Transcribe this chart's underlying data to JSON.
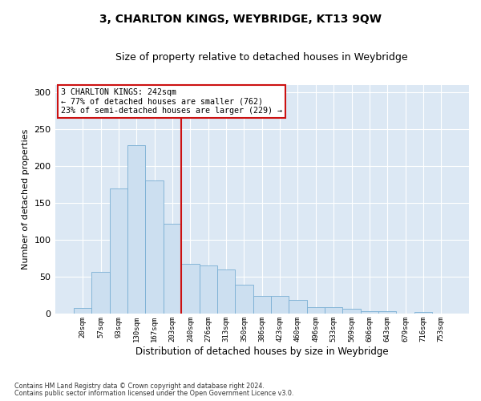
{
  "title": "3, CHARLTON KINGS, WEYBRIDGE, KT13 9QW",
  "subtitle": "Size of property relative to detached houses in Weybridge",
  "xlabel": "Distribution of detached houses by size in Weybridge",
  "ylabel": "Number of detached properties",
  "bar_labels": [
    "20sqm",
    "57sqm",
    "93sqm",
    "130sqm",
    "167sqm",
    "203sqm",
    "240sqm",
    "276sqm",
    "313sqm",
    "350sqm",
    "386sqm",
    "423sqm",
    "460sqm",
    "496sqm",
    "533sqm",
    "569sqm",
    "606sqm",
    "643sqm",
    "679sqm",
    "716sqm",
    "753sqm"
  ],
  "bar_values": [
    8,
    57,
    170,
    228,
    181,
    122,
    68,
    65,
    60,
    40,
    24,
    24,
    19,
    9,
    9,
    7,
    4,
    4,
    0,
    3,
    0
  ],
  "bar_color": "#ccdff0",
  "bar_edge_color": "#7aafd4",
  "vline_color": "#cc1111",
  "vline_index": 6,
  "annotation_line1": "3 CHARLTON KINGS: 242sqm",
  "annotation_line2": "← 77% of detached houses are smaller (762)",
  "annotation_line3": "23% of semi-detached houses are larger (229) →",
  "ylim_max": 310,
  "yticks": [
    0,
    50,
    100,
    150,
    200,
    250,
    300
  ],
  "plot_bg": "#dce8f4",
  "fig_bg": "#ffffff",
  "footer1": "Contains HM Land Registry data © Crown copyright and database right 2024.",
  "footer2": "Contains public sector information licensed under the Open Government Licence v3.0."
}
